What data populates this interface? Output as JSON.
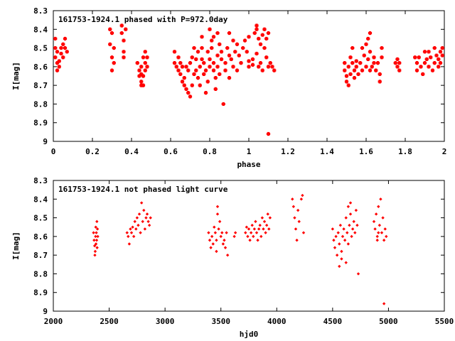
{
  "chart_data": [
    {
      "type": "scatter",
      "title": "161753-1924.1 phased with P=972.0day",
      "xlabel": "phase",
      "ylabel": "I[mag]",
      "xlim": [
        0,
        2
      ],
      "ylim": [
        9,
        8.3
      ],
      "y_inverted": true,
      "grid": false,
      "legend": "none",
      "marker": "cross",
      "color": "#ff0000",
      "x_ticks": [
        "0",
        "0.2",
        "0.4",
        "0.6",
        "0.8",
        "1",
        "1.2",
        "1.4",
        "1.6",
        "1.8",
        "2"
      ],
      "y_ticks": [
        "8.3",
        "8.4",
        "8.5",
        "8.6",
        "8.7",
        "8.8",
        "8.9",
        "9"
      ],
      "x_tick_values": [
        0,
        0.2,
        0.4,
        0.6,
        0.8,
        1,
        1.2,
        1.4,
        1.6,
        1.8,
        2
      ],
      "y_tick_values": [
        8.3,
        8.4,
        8.5,
        8.6,
        8.7,
        8.8,
        8.9,
        9
      ],
      "points": [
        [
          0.01,
          8.45
        ],
        [
          0.01,
          8.5
        ],
        [
          0.01,
          8.55
        ],
        [
          0.02,
          8.58
        ],
        [
          0.02,
          8.62
        ],
        [
          0.02,
          8.52
        ],
        [
          0.03,
          8.57
        ],
        [
          0.03,
          8.6
        ],
        [
          0.04,
          8.53
        ],
        [
          0.04,
          8.5
        ],
        [
          0.05,
          8.48
        ],
        [
          0.05,
          8.55
        ],
        [
          0.06,
          8.45
        ],
        [
          0.06,
          8.5
        ],
        [
          0.07,
          8.52
        ],
        [
          0.29,
          8.4
        ],
        [
          0.29,
          8.48
        ],
        [
          0.3,
          8.55
        ],
        [
          0.3,
          8.62
        ],
        [
          0.3,
          8.42
        ],
        [
          0.31,
          8.5
        ],
        [
          0.31,
          8.58
        ],
        [
          0.35,
          8.38
        ],
        [
          0.35,
          8.42
        ],
        [
          0.36,
          8.46
        ],
        [
          0.36,
          8.52
        ],
        [
          0.36,
          8.55
        ],
        [
          0.37,
          8.4
        ],
        [
          0.43,
          8.58
        ],
        [
          0.44,
          8.62
        ],
        [
          0.44,
          8.65
        ],
        [
          0.45,
          8.68
        ],
        [
          0.45,
          8.7
        ],
        [
          0.45,
          8.6
        ],
        [
          0.46,
          8.55
        ],
        [
          0.46,
          8.65
        ],
        [
          0.47,
          8.58
        ],
        [
          0.47,
          8.62
        ],
        [
          0.48,
          8.55
        ],
        [
          0.48,
          8.6
        ],
        [
          0.47,
          8.52
        ],
        [
          0.46,
          8.7
        ],
        [
          0.45,
          8.64
        ],
        [
          0.62,
          8.52
        ],
        [
          0.62,
          8.58
        ],
        [
          0.63,
          8.6
        ],
        [
          0.64,
          8.62
        ],
        [
          0.64,
          8.55
        ],
        [
          0.65,
          8.58
        ],
        [
          0.65,
          8.64
        ],
        [
          0.66,
          8.68
        ],
        [
          0.66,
          8.6
        ],
        [
          0.67,
          8.66
        ],
        [
          0.67,
          8.7
        ],
        [
          0.68,
          8.72
        ],
        [
          0.68,
          8.6
        ],
        [
          0.69,
          8.74
        ],
        [
          0.69,
          8.62
        ],
        [
          0.7,
          8.76
        ],
        [
          0.7,
          8.58
        ],
        [
          0.71,
          8.7
        ],
        [
          0.71,
          8.55
        ],
        [
          0.72,
          8.5
        ],
        [
          0.72,
          8.64
        ],
        [
          0.73,
          8.62
        ],
        [
          0.73,
          8.56
        ],
        [
          0.74,
          8.66
        ],
        [
          0.74,
          8.52
        ],
        [
          0.75,
          8.7
        ],
        [
          0.75,
          8.6
        ],
        [
          0.76,
          8.56
        ],
        [
          0.76,
          8.5
        ],
        [
          0.77,
          8.64
        ],
        [
          0.77,
          8.58
        ],
        [
          0.78,
          8.62
        ],
        [
          0.78,
          8.74
        ],
        [
          0.79,
          8.52
        ],
        [
          0.79,
          8.68
        ],
        [
          0.8,
          8.56
        ],
        [
          0.8,
          8.6
        ],
        [
          0.81,
          8.5
        ],
        [
          0.81,
          8.46
        ],
        [
          0.82,
          8.62
        ],
        [
          0.82,
          8.58
        ],
        [
          0.83,
          8.66
        ],
        [
          0.83,
          8.72
        ],
        [
          0.84,
          8.54
        ],
        [
          0.84,
          8.6
        ],
        [
          0.85,
          8.48
        ],
        [
          0.85,
          8.64
        ],
        [
          0.86,
          8.56
        ],
        [
          0.86,
          8.52
        ],
        [
          0.87,
          8.8
        ],
        [
          0.88,
          8.58
        ],
        [
          0.88,
          8.62
        ],
        [
          0.89,
          8.5
        ],
        [
          0.9,
          8.54
        ],
        [
          0.9,
          8.66
        ],
        [
          0.91,
          8.56
        ],
        [
          0.92,
          8.6
        ],
        [
          0.92,
          8.46
        ],
        [
          0.93,
          8.52
        ],
        [
          0.94,
          8.48
        ],
        [
          0.94,
          8.62
        ],
        [
          0.95,
          8.54
        ],
        [
          0.96,
          8.58
        ],
        [
          0.97,
          8.5
        ],
        [
          0.98,
          8.46
        ],
        [
          0.99,
          8.52
        ],
        [
          1.0,
          8.44
        ],
        [
          1.0,
          8.6
        ],
        [
          0.8,
          8.4
        ],
        [
          0.82,
          8.44
        ],
        [
          0.84,
          8.42
        ],
        [
          0.76,
          8.44
        ],
        [
          0.9,
          8.42
        ],
        [
          1.02,
          8.56
        ],
        [
          1.03,
          8.42
        ],
        [
          1.04,
          8.4
        ],
        [
          1.05,
          8.45
        ],
        [
          1.06,
          8.48
        ],
        [
          1.07,
          8.43
        ],
        [
          1.08,
          8.4
        ],
        [
          1.08,
          8.5
        ],
        [
          1.09,
          8.45
        ],
        [
          1.1,
          8.42
        ],
        [
          1.05,
          8.6
        ],
        [
          1.06,
          8.58
        ],
        [
          1.07,
          8.62
        ],
        [
          1.09,
          8.55
        ],
        [
          1.1,
          8.6
        ],
        [
          1.11,
          8.58
        ],
        [
          1.04,
          8.38
        ],
        [
          1.0,
          8.57
        ],
        [
          1.02,
          8.59
        ],
        [
          1.04,
          8.53
        ],
        [
          1.12,
          8.6
        ],
        [
          1.13,
          8.62
        ],
        [
          1.1,
          8.96
        ],
        [
          1.49,
          8.58
        ],
        [
          1.49,
          8.62
        ],
        [
          1.5,
          8.65
        ],
        [
          1.5,
          8.68
        ],
        [
          1.51,
          8.6
        ],
        [
          1.51,
          8.7
        ],
        [
          1.52,
          8.55
        ],
        [
          1.52,
          8.64
        ],
        [
          1.53,
          8.58
        ],
        [
          1.53,
          8.5
        ],
        [
          1.54,
          8.62
        ],
        [
          1.54,
          8.66
        ],
        [
          1.55,
          8.6
        ],
        [
          1.55,
          8.57
        ],
        [
          1.56,
          8.64
        ],
        [
          1.57,
          8.58
        ],
        [
          1.58,
          8.5
        ],
        [
          1.58,
          8.62
        ],
        [
          1.59,
          8.54
        ],
        [
          1.6,
          8.48
        ],
        [
          1.6,
          8.6
        ],
        [
          1.61,
          8.56
        ],
        [
          1.61,
          8.45
        ],
        [
          1.62,
          8.62
        ],
        [
          1.62,
          8.52
        ],
        [
          1.63,
          8.6
        ],
        [
          1.64,
          8.58
        ],
        [
          1.64,
          8.55
        ],
        [
          1.65,
          8.62
        ],
        [
          1.66,
          8.58
        ],
        [
          1.67,
          8.64
        ],
        [
          1.67,
          8.68
        ],
        [
          1.68,
          8.55
        ],
        [
          1.68,
          8.5
        ],
        [
          1.62,
          8.42
        ],
        [
          1.75,
          8.58
        ],
        [
          1.76,
          8.6
        ],
        [
          1.76,
          8.56
        ],
        [
          1.77,
          8.62
        ],
        [
          1.77,
          8.58
        ],
        [
          1.85,
          8.55
        ],
        [
          1.86,
          8.58
        ],
        [
          1.86,
          8.62
        ],
        [
          1.87,
          8.55
        ],
        [
          1.88,
          8.6
        ],
        [
          1.89,
          8.64
        ],
        [
          1.9,
          8.58
        ],
        [
          1.9,
          8.52
        ],
        [
          1.91,
          8.56
        ],
        [
          1.92,
          8.6
        ],
        [
          1.92,
          8.52
        ],
        [
          1.93,
          8.55
        ],
        [
          1.94,
          8.62
        ],
        [
          1.95,
          8.58
        ],
        [
          1.95,
          8.5
        ],
        [
          1.96,
          8.54
        ],
        [
          1.97,
          8.6
        ],
        [
          1.97,
          8.56
        ],
        [
          1.98,
          8.52
        ],
        [
          1.98,
          8.58
        ],
        [
          1.99,
          8.54
        ],
        [
          1.99,
          8.5
        ]
      ]
    },
    {
      "type": "scatter",
      "title": "161753-1924.1 not phased light curve",
      "xlabel": "hjd0",
      "ylabel": "I[mag]",
      "xlim": [
        2000,
        5500
      ],
      "ylim": [
        9,
        8.3
      ],
      "y_inverted": true,
      "grid": false,
      "legend": "none",
      "marker": "diamond",
      "color": "#ff0000",
      "x_ticks": [
        "2000",
        "2500",
        "3000",
        "3500",
        "4000",
        "4500",
        "5000",
        "5500"
      ],
      "y_ticks": [
        "8.3",
        "8.4",
        "8.5",
        "8.6",
        "8.7",
        "8.8",
        "8.9",
        "9"
      ],
      "x_tick_values": [
        2000,
        2500,
        3000,
        3500,
        4000,
        4500,
        5000,
        5500
      ],
      "y_tick_values": [
        8.3,
        8.4,
        8.5,
        8.6,
        8.7,
        8.8,
        8.9,
        9
      ],
      "points": [
        [
          2360,
          8.58
        ],
        [
          2365,
          8.62
        ],
        [
          2370,
          8.65
        ],
        [
          2372,
          8.7
        ],
        [
          2375,
          8.68
        ],
        [
          2378,
          8.6
        ],
        [
          2380,
          8.55
        ],
        [
          2382,
          8.64
        ],
        [
          2385,
          8.58
        ],
        [
          2388,
          8.62
        ],
        [
          2390,
          8.52
        ],
        [
          2392,
          8.66
        ],
        [
          2395,
          8.56
        ],
        [
          2398,
          8.6
        ],
        [
          2660,
          8.58
        ],
        [
          2670,
          8.6
        ],
        [
          2680,
          8.64
        ],
        [
          2690,
          8.56
        ],
        [
          2700,
          8.58
        ],
        [
          2710,
          8.55
        ],
        [
          2720,
          8.6
        ],
        [
          2730,
          8.52
        ],
        [
          2740,
          8.56
        ],
        [
          2750,
          8.5
        ],
        [
          2760,
          8.54
        ],
        [
          2770,
          8.48
        ],
        [
          2780,
          8.58
        ],
        [
          2790,
          8.42
        ],
        [
          2800,
          8.52
        ],
        [
          2810,
          8.46
        ],
        [
          2820,
          8.56
        ],
        [
          2830,
          8.5
        ],
        [
          2840,
          8.48
        ],
        [
          2850,
          8.52
        ],
        [
          2860,
          8.54
        ],
        [
          2870,
          8.5
        ],
        [
          3390,
          8.58
        ],
        [
          3400,
          8.62
        ],
        [
          3410,
          8.66
        ],
        [
          3420,
          8.6
        ],
        [
          3430,
          8.64
        ],
        [
          3440,
          8.55
        ],
        [
          3450,
          8.58
        ],
        [
          3460,
          8.62
        ],
        [
          3470,
          8.48
        ],
        [
          3480,
          8.56
        ],
        [
          3490,
          8.52
        ],
        [
          3500,
          8.6
        ],
        [
          3510,
          8.58
        ],
        [
          3520,
          8.64
        ],
        [
          3530,
          8.62
        ],
        [
          3540,
          8.66
        ],
        [
          3550,
          8.58
        ],
        [
          3560,
          8.7
        ],
        [
          3470,
          8.44
        ],
        [
          3460,
          8.68
        ],
        [
          3620,
          8.6
        ],
        [
          3630,
          8.58
        ],
        [
          3720,
          8.58
        ],
        [
          3730,
          8.55
        ],
        [
          3740,
          8.6
        ],
        [
          3750,
          8.56
        ],
        [
          3760,
          8.62
        ],
        [
          3770,
          8.58
        ],
        [
          3780,
          8.54
        ],
        [
          3790,
          8.6
        ],
        [
          3800,
          8.56
        ],
        [
          3810,
          8.52
        ],
        [
          3820,
          8.58
        ],
        [
          3830,
          8.62
        ],
        [
          3840,
          8.56
        ],
        [
          3850,
          8.54
        ],
        [
          3860,
          8.6
        ],
        [
          3870,
          8.5
        ],
        [
          3880,
          8.56
        ],
        [
          3890,
          8.52
        ],
        [
          3900,
          8.58
        ],
        [
          3910,
          8.54
        ],
        [
          3920,
          8.48
        ],
        [
          3930,
          8.56
        ],
        [
          3940,
          8.5
        ],
        [
          4140,
          8.4
        ],
        [
          4150,
          8.44
        ],
        [
          4160,
          8.5
        ],
        [
          4170,
          8.56
        ],
        [
          4180,
          8.62
        ],
        [
          4190,
          8.46
        ],
        [
          4200,
          8.52
        ],
        [
          4220,
          8.4
        ],
        [
          4230,
          8.38
        ],
        [
          4240,
          8.58
        ],
        [
          4500,
          8.56
        ],
        [
          4510,
          8.62
        ],
        [
          4520,
          8.66
        ],
        [
          4530,
          8.6
        ],
        [
          4540,
          8.7
        ],
        [
          4550,
          8.58
        ],
        [
          4560,
          8.64
        ],
        [
          4570,
          8.54
        ],
        [
          4580,
          8.68
        ],
        [
          4590,
          8.6
        ],
        [
          4600,
          8.56
        ],
        [
          4610,
          8.62
        ],
        [
          4620,
          8.5
        ],
        [
          4630,
          8.58
        ],
        [
          4640,
          8.64
        ],
        [
          4650,
          8.54
        ],
        [
          4660,
          8.48
        ],
        [
          4670,
          8.6
        ],
        [
          4680,
          8.56
        ],
        [
          4690,
          8.52
        ],
        [
          4700,
          8.58
        ],
        [
          4710,
          8.46
        ],
        [
          4720,
          8.54
        ],
        [
          4730,
          8.8
        ],
        [
          4560,
          8.76
        ],
        [
          4580,
          8.72
        ],
        [
          4620,
          8.74
        ],
        [
          4640,
          8.44
        ],
        [
          4660,
          8.42
        ],
        [
          4870,
          8.52
        ],
        [
          4880,
          8.56
        ],
        [
          4890,
          8.48
        ],
        [
          4900,
          8.6
        ],
        [
          4910,
          8.44
        ],
        [
          4920,
          8.54
        ],
        [
          4930,
          8.4
        ],
        [
          4940,
          8.58
        ],
        [
          4950,
          8.5
        ],
        [
          4960,
          8.62
        ],
        [
          4970,
          8.56
        ],
        [
          4980,
          8.6
        ],
        [
          4900,
          8.62
        ],
        [
          4910,
          8.58
        ],
        [
          4960,
          8.96
        ]
      ]
    }
  ]
}
